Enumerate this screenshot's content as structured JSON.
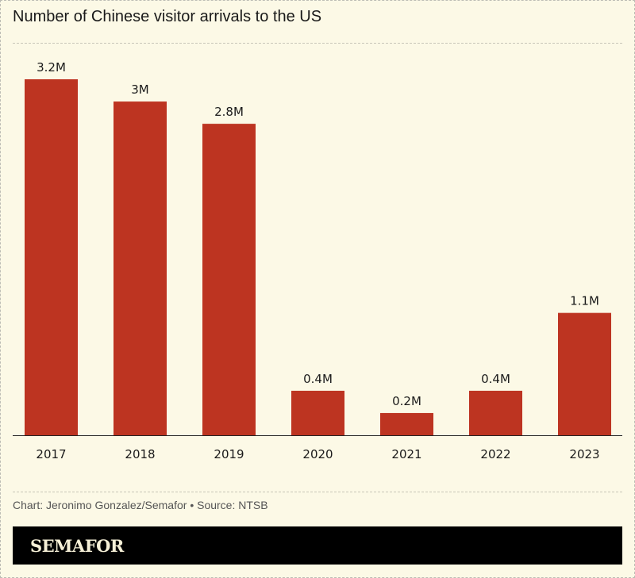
{
  "chart_data": {
    "type": "bar",
    "title": "Number of Chinese visitor arrivals to the US",
    "categories": [
      "2017",
      "2018",
      "2019",
      "2020",
      "2021",
      "2022",
      "2023"
    ],
    "values": [
      3.2,
      3.0,
      2.8,
      0.4,
      0.2,
      0.4,
      1.1
    ],
    "data_labels": [
      "3.2M",
      "3M",
      "2.8M",
      "0.4M",
      "0.2M",
      "0.4M",
      "1.1M"
    ],
    "unit": "M",
    "ylim": [
      0,
      3.2
    ],
    "grid": false,
    "bar_color": "#bd3421"
  },
  "footer": {
    "credit": "Chart: Jeronimo Gonzalez/Semafor • Source: NTSB",
    "logo": "SEMAFOR"
  }
}
